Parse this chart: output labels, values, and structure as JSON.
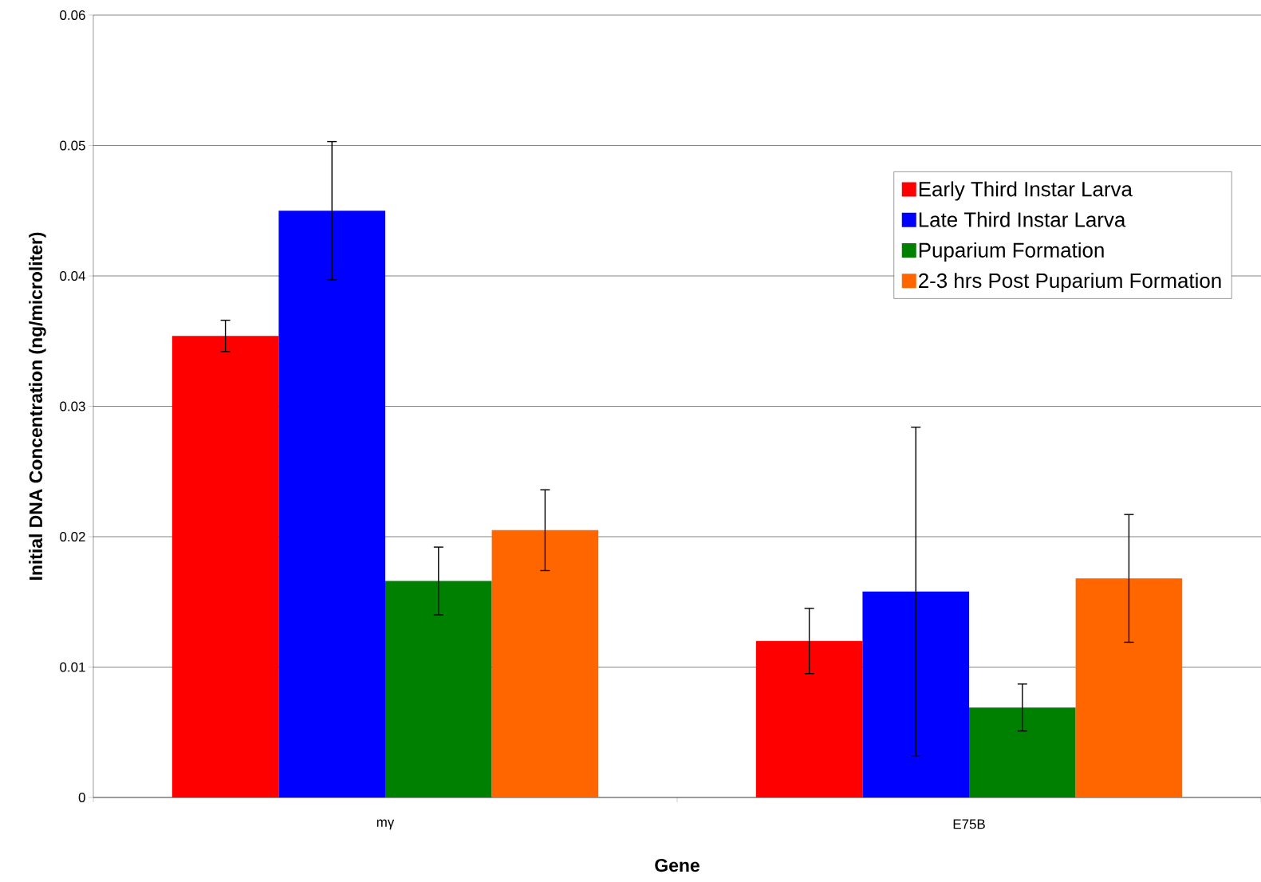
{
  "chart_data": {
    "type": "bar",
    "xlabel": "Gene",
    "ylabel": "Initial DNA Concentration (ng/microliter)",
    "categories": [
      "mγ",
      "E75B"
    ],
    "series": [
      {
        "name": "Early Third Instar Larva",
        "color": "#ff0000",
        "values": [
          0.0354,
          0.012
        ],
        "errors": [
          0.0012,
          0.0025
        ]
      },
      {
        "name": "Late Third Instar Larva",
        "color": "#0000ff",
        "values": [
          0.045,
          0.0158
        ],
        "errors": [
          0.0053,
          0.0126
        ]
      },
      {
        "name": "Puparium Formation",
        "color": "#008000",
        "values": [
          0.0166,
          0.0069
        ],
        "errors": [
          0.0026,
          0.0018
        ]
      },
      {
        "name": "2-3 hrs Post Puparium Formation",
        "color": "#ff6600",
        "values": [
          0.0205,
          0.0168
        ],
        "errors": [
          0.0031,
          0.0049
        ]
      }
    ],
    "ylim": [
      0,
      0.06
    ],
    "yticks": [
      0,
      0.01,
      0.02,
      0.03,
      0.04,
      0.05,
      0.06
    ],
    "grid": "y",
    "legend": "top right"
  }
}
